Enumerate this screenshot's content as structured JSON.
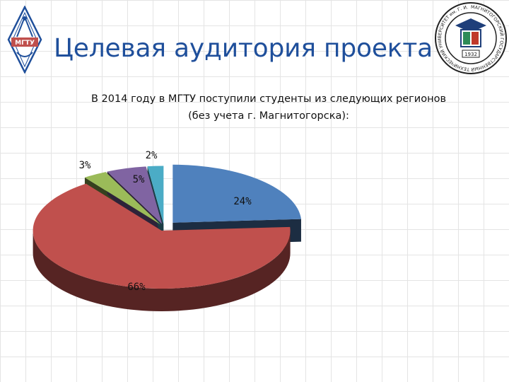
{
  "header": {
    "title": "Целевая аудитория проекта",
    "logo_left_text": "МГТУ",
    "logo_right_year": "1932",
    "logo_right_ring_text": "МАГНИТОГОРСКИЙ ГОСУДАРСТВЕННЫЙ ТЕХНИЧЕСКИЙ УНИВЕРСИТЕТ им. Г. И. НОСОВА"
  },
  "subtitle": {
    "line1": "В 2014 году в МГТУ поступили студенты из следующих регионов",
    "line2": "(без учета г. Магнитогорска):"
  },
  "chart_data": {
    "type": "pie",
    "title": "",
    "values": [
      24,
      66,
      3,
      5,
      2
    ],
    "labels": [
      "24%",
      "66%",
      "3%",
      "5%",
      "2%"
    ],
    "colors": [
      "#4f81bd",
      "#c0504d",
      "#9bbb59",
      "#8064a2",
      "#4bacc6"
    ],
    "exploded": true,
    "three_d": true
  }
}
